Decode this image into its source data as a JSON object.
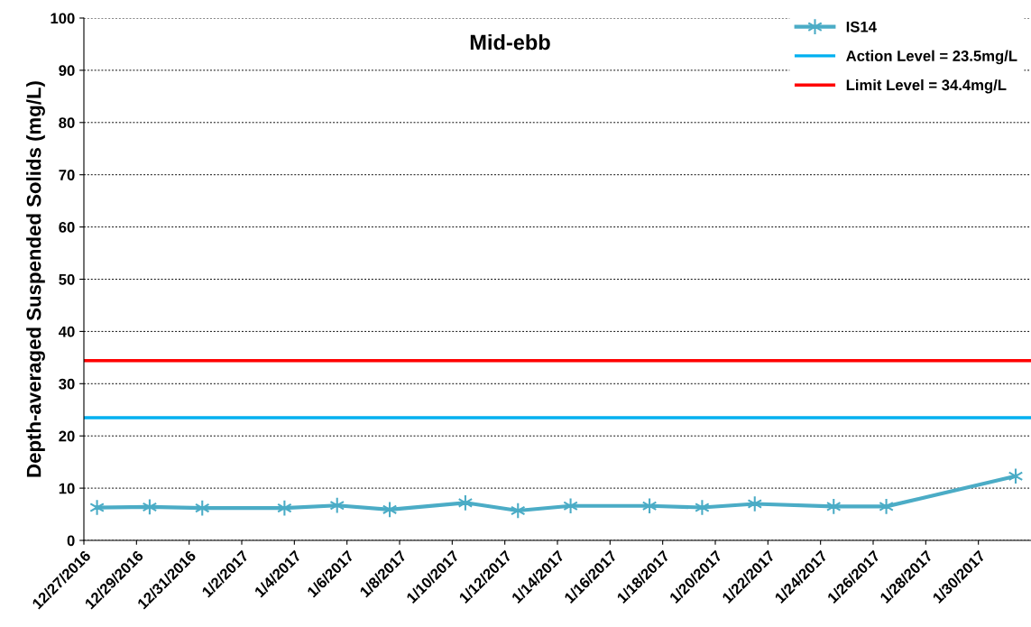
{
  "chart_data": {
    "type": "line",
    "title": "Mid-ebb",
    "ylabel": "Depth-averaged Suspended Solids (mg/L)",
    "x": [
      "2016-12-27T12:00",
      "2016-12-29T12:00",
      "2016-12-31T12:00",
      "2017-01-03T15:00",
      "2017-01-05T15:00",
      "2017-01-07T15:00",
      "2017-01-10T12:00",
      "2017-01-12T12:00",
      "2017-01-14T12:00",
      "2017-01-17T12:00",
      "2017-01-19T12:00",
      "2017-01-21T12:00",
      "2017-01-24T12:00",
      "2017-01-26T12:00",
      "2017-01-31T10:00"
    ],
    "series": [
      {
        "name": "IS14",
        "color": "#4bacc6",
        "values": [
          6.3,
          6.4,
          6.2,
          6.2,
          6.7,
          5.9,
          7.2,
          5.7,
          6.6,
          6.6,
          6.3,
          7.0,
          6.5,
          6.5,
          12.3
        ]
      }
    ],
    "marker": "cross",
    "line_style": "solid",
    "ref_lines": [
      {
        "axis": "y",
        "value": 23.5,
        "label": "Action Level = 23.5mg/L",
        "color": "#00b0f0"
      },
      {
        "axis": "y",
        "value": 34.4,
        "label": "Limit Level = 34.4mg/L",
        "color": "#ff0000"
      }
    ],
    "xlim": [
      "2016-12-27",
      "2017-02-01"
    ],
    "xticks": [
      {
        "value": "2016-12-27",
        "label": "12/27/2016"
      },
      {
        "value": "2016-12-29",
        "label": "12/29/2016"
      },
      {
        "value": "2016-12-31",
        "label": "12/31/2016"
      },
      {
        "value": "2017-01-02",
        "label": "1/2/2017"
      },
      {
        "value": "2017-01-04",
        "label": "1/4/2017"
      },
      {
        "value": "2017-01-06",
        "label": "1/6/2017"
      },
      {
        "value": "2017-01-08",
        "label": "1/8/2017"
      },
      {
        "value": "2017-01-10",
        "label": "1/10/2017"
      },
      {
        "value": "2017-01-12",
        "label": "1/12/2017"
      },
      {
        "value": "2017-01-14",
        "label": "1/14/2017"
      },
      {
        "value": "2017-01-16",
        "label": "1/16/2017"
      },
      {
        "value": "2017-01-18",
        "label": "1/18/2017"
      },
      {
        "value": "2017-01-20",
        "label": "1/20/2017"
      },
      {
        "value": "2017-01-22",
        "label": "1/22/2017"
      },
      {
        "value": "2017-01-24",
        "label": "1/24/2017"
      },
      {
        "value": "2017-01-26",
        "label": "1/26/2017"
      },
      {
        "value": "2017-01-28",
        "label": "1/28/2017"
      },
      {
        "value": "2017-01-30",
        "label": "1/30/2017"
      }
    ],
    "ylim": [
      0,
      100
    ],
    "yticks": [
      0,
      10,
      20,
      30,
      40,
      50,
      60,
      70,
      80,
      90,
      100
    ],
    "grid": "y",
    "legend": "top right"
  }
}
